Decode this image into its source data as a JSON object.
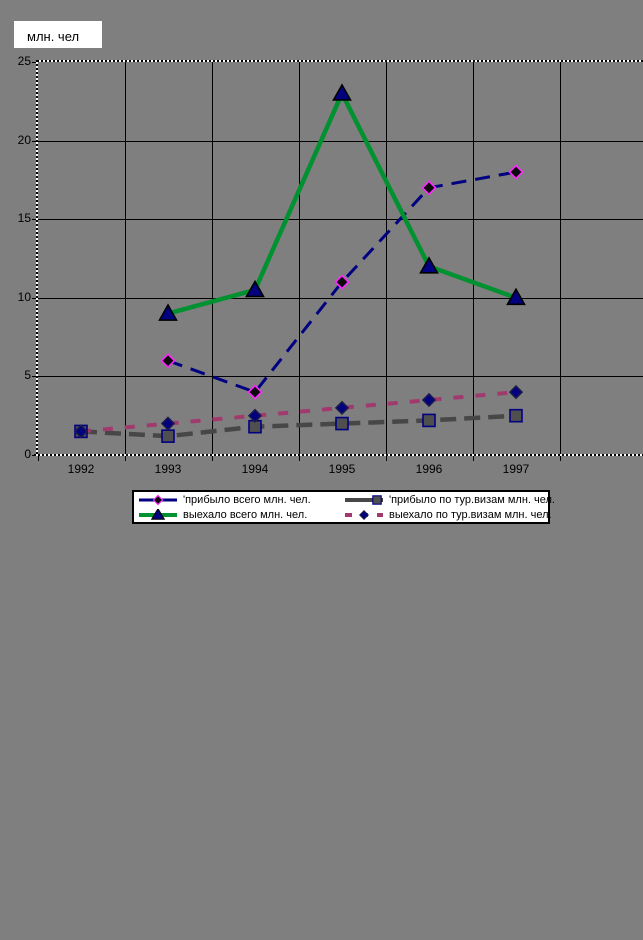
{
  "background_color": "#7F7F7F",
  "title": {
    "text": "млн. чел"
  },
  "chart_data": {
    "type": "line",
    "title": "млн. чел",
    "categories": [
      "1992",
      "1993",
      "1994",
      "1995",
      "1996",
      "1997"
    ],
    "ylim": [
      0,
      25
    ],
    "yticks": [
      0,
      5,
      10,
      15,
      20,
      25
    ],
    "grid": true,
    "legend_position": "bottom",
    "plot_background": "#7F7F7F",
    "gridline_color": "#000000",
    "plot_border_style": "dotted-black-white",
    "series": [
      {
        "name": "'прибыло всего млн. чел.",
        "values": [
          null,
          6,
          4,
          11,
          17,
          18
        ],
        "line": {
          "color": "#000080",
          "width": 3,
          "dash": "15 9",
          "style": "dashed"
        },
        "marker": {
          "shape": "diamond",
          "fill": "#0B0B0B",
          "edge": "#FF26FF",
          "size": 13
        }
      },
      {
        "name": "'прибыло по тур.визам млн. чел.",
        "values": [
          1.5,
          1.2,
          1.8,
          2,
          2.2,
          2.5
        ],
        "line": {
          "color": "#474747",
          "width": 4.5,
          "dash": "16 8",
          "style": "dashed"
        },
        "marker": {
          "shape": "square",
          "fill": "#4F4F4F",
          "edge": "#000080",
          "size": 12
        }
      },
      {
        "name": "выехало всего млн. чел.",
        "values": [
          null,
          9,
          10.5,
          23,
          12,
          10
        ],
        "line": {
          "color": "#009130",
          "width": 4.5,
          "dash": "",
          "style": "solid"
        },
        "marker": {
          "shape": "triangle",
          "fill": "#000080",
          "edge": "#000000",
          "size": 15
        }
      },
      {
        "name": "выехало по тур.визам млн. чел.",
        "values": [
          1.5,
          2,
          2.5,
          3,
          3.5,
          4
        ],
        "line": {
          "color": "#A03A6E",
          "width": 4,
          "dash": "10 12",
          "style": "dashed"
        },
        "marker": {
          "shape": "diamond",
          "fill": "#000080",
          "edge": "#1A1A4D",
          "size": 12
        }
      }
    ]
  }
}
